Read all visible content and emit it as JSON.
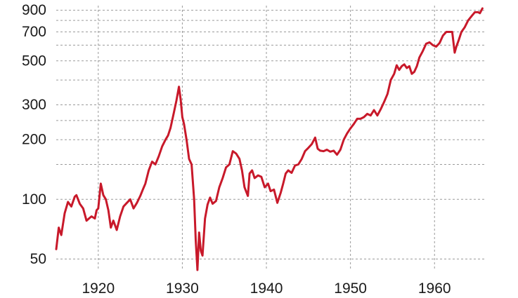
{
  "chart_data": {
    "type": "line",
    "title": "",
    "xlabel": "",
    "ylabel": "",
    "yscale": "log",
    "xlim": [
      1915,
      1966
    ],
    "ylim": [
      44,
      950
    ],
    "grid": true,
    "line_color": "#c8192a",
    "grid_color": "#9a9a9a",
    "x_ticks": [
      1920,
      1930,
      1940,
      1950,
      1960
    ],
    "x_tick_labels": [
      "1920",
      "1930",
      "1940",
      "1950",
      "1960"
    ],
    "y_ticks": [
      50,
      100,
      200,
      300,
      500,
      700,
      900
    ],
    "y_tick_labels": [
      "50",
      "100",
      "200",
      "300",
      "500",
      "700",
      "900"
    ],
    "y_grid_values": [
      50,
      100,
      150,
      200,
      250,
      300,
      400,
      500,
      600,
      700,
      800,
      900
    ],
    "series": [
      {
        "x": [
          1915.0,
          1915.3,
          1915.6,
          1916.0,
          1916.4,
          1916.8,
          1917.2,
          1917.4,
          1917.8,
          1918.2,
          1918.6,
          1918.9,
          1919.2,
          1919.6,
          1919.8,
          1920.0,
          1920.3,
          1920.6,
          1920.9,
          1921.2,
          1921.5,
          1921.8,
          1922.2,
          1922.6,
          1923.0,
          1923.4,
          1923.8,
          1924.2,
          1924.6,
          1925.0,
          1925.3,
          1925.6,
          1926.0,
          1926.4,
          1926.8,
          1927.2,
          1927.6,
          1928.0,
          1928.3,
          1928.6,
          1929.0,
          1929.3,
          1929.6,
          1929.8,
          1930.0,
          1930.2,
          1930.5,
          1930.8,
          1931.1,
          1931.4,
          1931.6,
          1931.8,
          1932.0,
          1932.2,
          1932.4,
          1932.7,
          1933.0,
          1933.3,
          1933.6,
          1934.0,
          1934.4,
          1934.8,
          1935.2,
          1935.6,
          1936.0,
          1936.4,
          1936.8,
          1937.1,
          1937.4,
          1937.8,
          1938.0,
          1938.3,
          1938.6,
          1939.0,
          1939.4,
          1939.8,
          1940.2,
          1940.5,
          1940.9,
          1941.3,
          1941.7,
          1942.0,
          1942.3,
          1942.6,
          1943.0,
          1943.4,
          1943.8,
          1944.2,
          1944.6,
          1945.0,
          1945.4,
          1945.8,
          1946.1,
          1946.4,
          1946.8,
          1947.2,
          1947.6,
          1948.0,
          1948.4,
          1948.8,
          1949.2,
          1949.6,
          1950.0,
          1950.4,
          1950.8,
          1951.2,
          1951.6,
          1952.0,
          1952.4,
          1952.8,
          1953.2,
          1953.6,
          1954.0,
          1954.4,
          1954.8,
          1955.2,
          1955.5,
          1955.8,
          1956.1,
          1956.4,
          1956.7,
          1957.0,
          1957.3,
          1957.6,
          1957.9,
          1958.2,
          1958.6,
          1959.0,
          1959.4,
          1959.8,
          1960.2,
          1960.6,
          1961.0,
          1961.4,
          1961.8,
          1962.1,
          1962.4,
          1962.6,
          1962.9,
          1963.2,
          1963.6,
          1964.0,
          1964.4,
          1964.8,
          1965.2,
          1965.4,
          1965.7
        ],
        "values": [
          56,
          72,
          66,
          85,
          97,
          92,
          103,
          105,
          95,
          90,
          78,
          80,
          82,
          80,
          88,
          90,
          120,
          105,
          100,
          88,
          72,
          78,
          70,
          82,
          92,
          96,
          100,
          90,
          96,
          104,
          112,
          120,
          140,
          155,
          150,
          165,
          185,
          200,
          210,
          230,
          275,
          315,
          370,
          320,
          260,
          240,
          200,
          160,
          150,
          100,
          62,
          44,
          68,
          55,
          52,
          80,
          94,
          102,
          95,
          98,
          115,
          128,
          145,
          150,
          175,
          170,
          160,
          140,
          115,
          104,
          135,
          140,
          128,
          132,
          130,
          115,
          120,
          110,
          112,
          96,
          108,
          120,
          135,
          140,
          136,
          148,
          150,
          160,
          175,
          182,
          190,
          205,
          180,
          176,
          175,
          178,
          174,
          176,
          168,
          178,
          200,
          215,
          228,
          240,
          255,
          255,
          260,
          270,
          265,
          282,
          265,
          285,
          310,
          340,
          400,
          430,
          475,
          450,
          470,
          480,
          460,
          470,
          430,
          440,
          470,
          520,
          560,
          610,
          620,
          600,
          590,
          615,
          670,
          700,
          700,
          700,
          550,
          590,
          640,
          700,
          740,
          800,
          840,
          880,
          880,
          870,
          920
        ]
      }
    ]
  }
}
